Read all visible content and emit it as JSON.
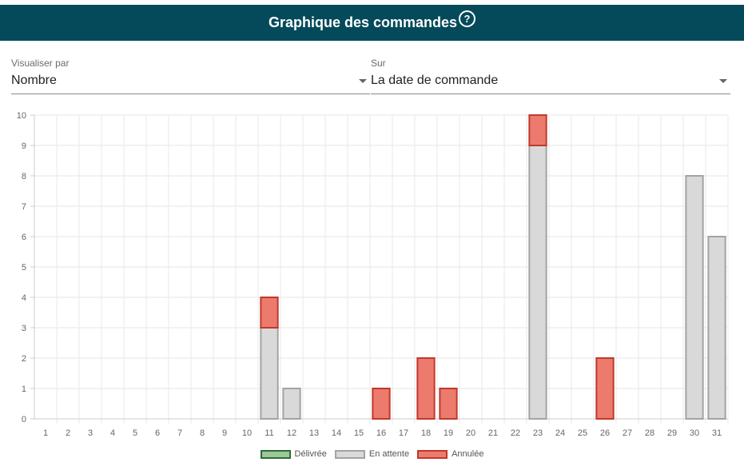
{
  "header": {
    "title": "Graphique des commandes",
    "help_icon": "help-circle-icon"
  },
  "filters": {
    "visualiser": {
      "label": "Visualiser par",
      "value": "Nombre"
    },
    "sur": {
      "label": "Sur",
      "value": "La date de commande"
    }
  },
  "chart_data": {
    "type": "bar",
    "stacked": true,
    "categories": [
      "1",
      "2",
      "3",
      "4",
      "5",
      "6",
      "7",
      "8",
      "9",
      "10",
      "11",
      "12",
      "13",
      "14",
      "15",
      "16",
      "17",
      "18",
      "19",
      "20",
      "21",
      "22",
      "23",
      "24",
      "25",
      "26",
      "27",
      "28",
      "29",
      "30",
      "31"
    ],
    "series": [
      {
        "name": "Délivrée",
        "color": "#9bc79b",
        "border": "#2e6b34",
        "values": [
          0,
          0,
          0,
          0,
          0,
          0,
          0,
          0,
          0,
          0,
          0,
          0,
          0,
          0,
          0,
          0,
          0,
          0,
          0,
          0,
          0,
          0,
          0,
          0,
          0,
          0,
          0,
          0,
          0,
          0,
          0
        ]
      },
      {
        "name": "En attente",
        "color": "#d9d9d9",
        "border": "#a3a3a3",
        "values": [
          0,
          0,
          0,
          0,
          0,
          0,
          0,
          0,
          0,
          0,
          3,
          1,
          0,
          0,
          0,
          0,
          0,
          0,
          0,
          0,
          0,
          0,
          9,
          0,
          0,
          0,
          0,
          0,
          0,
          8,
          6
        ]
      },
      {
        "name": "Annulée",
        "color": "#ec7b6e",
        "border": "#c0392b",
        "values": [
          0,
          0,
          0,
          0,
          0,
          0,
          0,
          0,
          0,
          0,
          1,
          0,
          0,
          0,
          0,
          1,
          0,
          2,
          1,
          0,
          0,
          0,
          1,
          0,
          0,
          2,
          0,
          0,
          0,
          0,
          0
        ]
      }
    ],
    "ylim": [
      0,
      10
    ],
    "yticks": [
      0,
      1,
      2,
      3,
      4,
      5,
      6,
      7,
      8,
      9,
      10
    ],
    "grid": true,
    "legend": "bottom"
  }
}
